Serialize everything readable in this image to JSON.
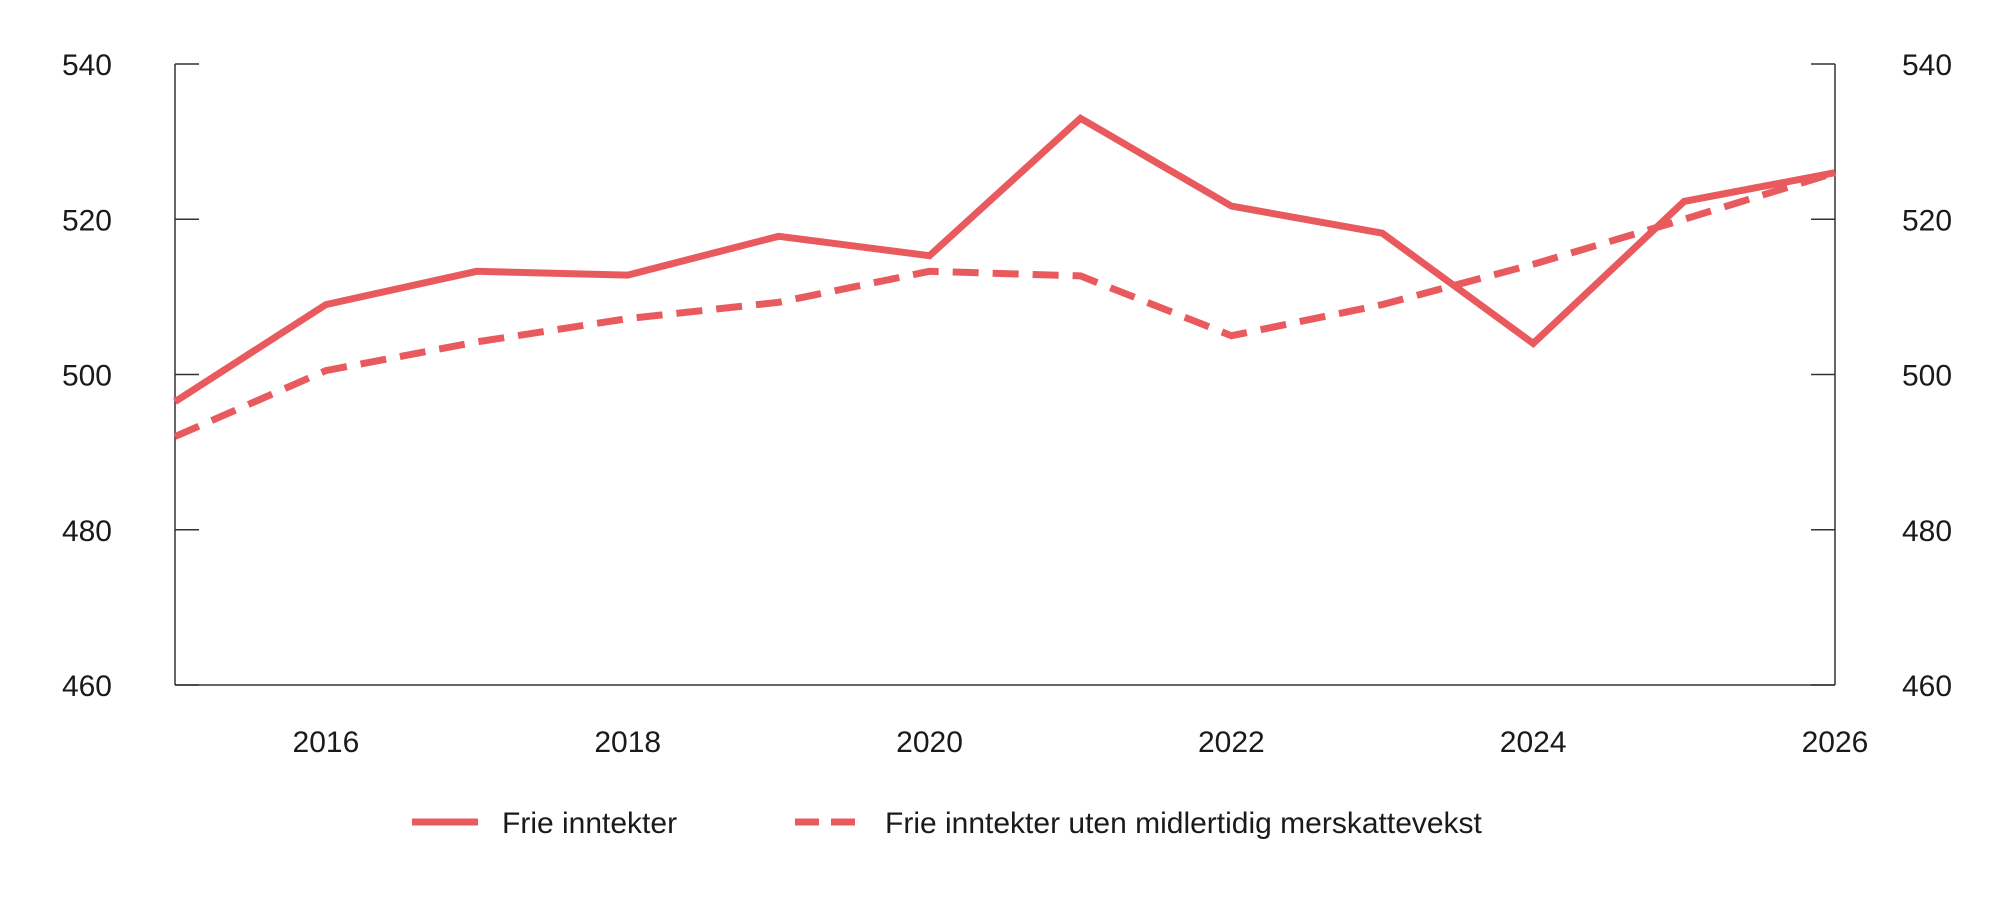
{
  "chart_data": {
    "type": "line",
    "title": "",
    "xlabel": "",
    "ylabel": "",
    "xlim": [
      2015,
      2026
    ],
    "ylim": [
      460,
      540
    ],
    "y_ticks": [
      460,
      480,
      500,
      520,
      540
    ],
    "x_ticks": [
      2016,
      2018,
      2020,
      2022,
      2024,
      2026
    ],
    "y_tick_labels": [
      "460",
      "480",
      "500",
      "520",
      "540"
    ],
    "x_tick_labels": [
      "2016",
      "2018",
      "2020",
      "2022",
      "2024",
      "2026"
    ],
    "secondary_y_axis": true,
    "grid": false,
    "legend_position": "bottom",
    "x": [
      2015,
      2016,
      2017,
      2018,
      2019,
      2020,
      2021,
      2022,
      2023,
      2024,
      2025,
      2026
    ],
    "series": [
      {
        "name": "Frie inntekter",
        "style": "solid",
        "color": "#e85a5e",
        "values": [
          496.5,
          509.0,
          513.3,
          512.8,
          517.8,
          515.3,
          533.0,
          521.7,
          518.2,
          504.0,
          522.3,
          526.0
        ]
      },
      {
        "name": "Frie inntekter uten midlertidig merskattevekst",
        "style": "dashed",
        "color": "#e85a5e",
        "values": [
          492.0,
          500.5,
          504.2,
          507.2,
          509.3,
          513.3,
          512.7,
          505.0,
          509.0,
          514.2,
          520.0,
          526.0
        ]
      }
    ]
  }
}
